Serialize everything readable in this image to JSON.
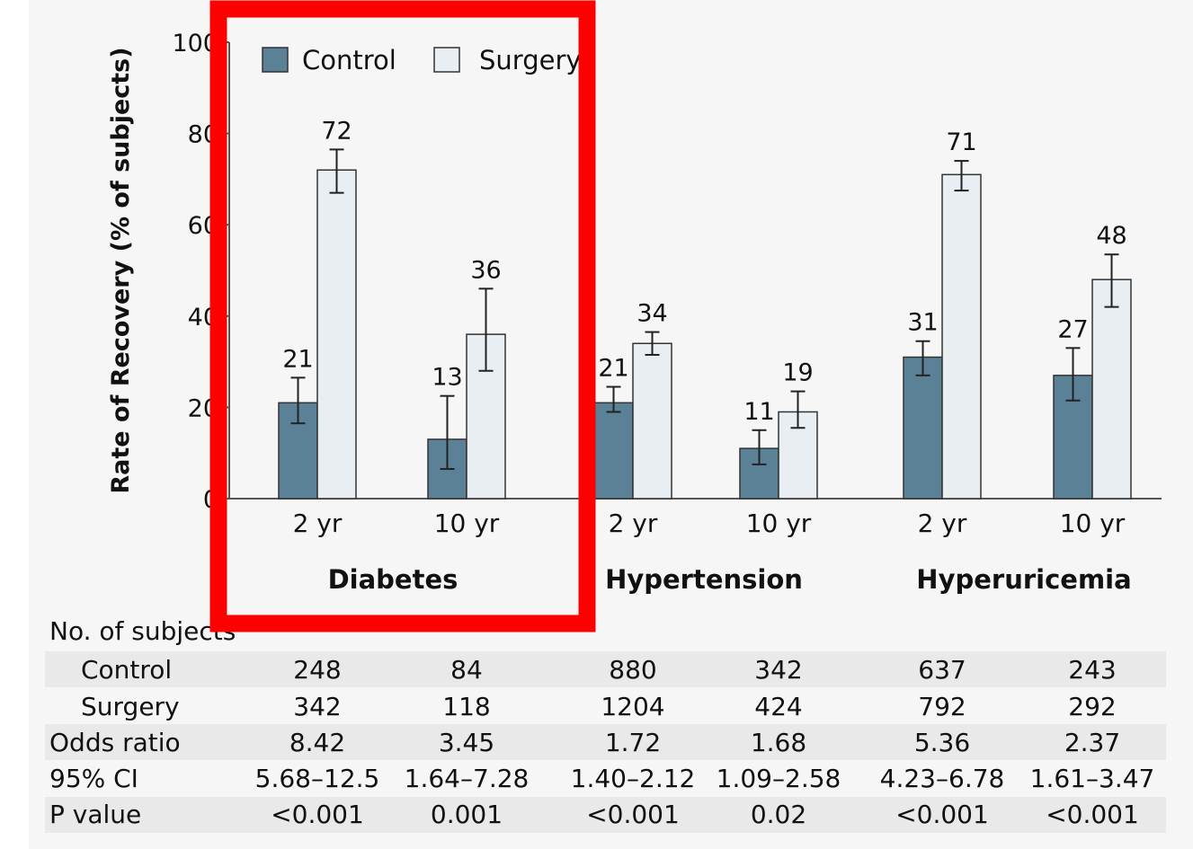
{
  "chart_data": {
    "type": "bar",
    "ylabel": "Rate of Recovery (% of subjects)",
    "xlabel": "",
    "ylim": [
      0,
      100
    ],
    "yticks": [
      "0",
      "20",
      "40",
      "60",
      "80",
      "100"
    ],
    "grid": false,
    "legend_position": "top-left",
    "colors": {
      "Control": "#5b8196",
      "Surgery": "#e8eef1"
    },
    "groups": [
      "Diabetes",
      "Hypertension",
      "Hyperuricemia"
    ],
    "categories": [
      "2 yr",
      "10 yr",
      "2 yr",
      "10 yr",
      "2 yr",
      "10 yr"
    ],
    "category_group": [
      0,
      0,
      1,
      1,
      2,
      2
    ],
    "series": [
      {
        "name": "Control",
        "values": [
          21,
          13,
          21,
          11,
          31,
          27
        ],
        "labels": [
          "21",
          "13",
          "21",
          "11",
          "31",
          "27"
        ],
        "error": [
          [
            16.5,
            26.5
          ],
          [
            6.5,
            22.5
          ],
          [
            19,
            24.5
          ],
          [
            7.5,
            15
          ],
          [
            27,
            34.5
          ],
          [
            21.5,
            33
          ]
        ]
      },
      {
        "name": "Surgery",
        "values": [
          72,
          36,
          34,
          19,
          71,
          48
        ],
        "labels": [
          "72",
          "36",
          "34",
          "19",
          "71",
          "48"
        ],
        "error": [
          [
            67,
            76.5
          ],
          [
            28,
            46
          ],
          [
            31.5,
            36.5
          ],
          [
            15.5,
            23.5
          ],
          [
            67.5,
            74
          ],
          [
            42,
            53.5
          ]
        ]
      }
    ]
  },
  "table": {
    "title": "No. of subjects",
    "rows": [
      {
        "label": "Control",
        "indent": true,
        "values": [
          "248",
          "84",
          "880",
          "342",
          "637",
          "243"
        ]
      },
      {
        "label": "Surgery",
        "indent": true,
        "values": [
          "342",
          "118",
          "1204",
          "424",
          "792",
          "292"
        ]
      },
      {
        "label": "Odds ratio",
        "indent": false,
        "values": [
          "8.42",
          "3.45",
          "1.72",
          "1.68",
          "5.36",
          "2.37"
        ]
      },
      {
        "label": "95% CI",
        "indent": false,
        "values": [
          "5.68–12.5",
          "1.64–7.28",
          "1.40–2.12",
          "1.09–2.58",
          "4.23–6.78",
          "1.61–3.47"
        ]
      },
      {
        "label": "P value",
        "indent": false,
        "values": [
          "<0.001",
          "0.001",
          "<0.001",
          "0.02",
          "<0.001",
          "<0.001"
        ]
      }
    ]
  },
  "highlight": {
    "color": "#ff0000",
    "target_group": "Diabetes"
  }
}
